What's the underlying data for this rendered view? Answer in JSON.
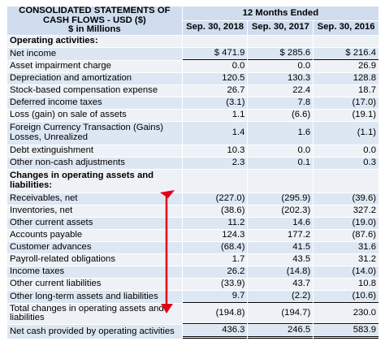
{
  "header": {
    "title_lines": [
      "CONSOLIDATED STATEMENTS OF",
      "CASH FLOWS - USD ($)",
      "$ in Millions"
    ],
    "period": "12 Months Ended",
    "columns": [
      "Sep. 30, 2018",
      "Sep. 30, 2017",
      "Sep. 30, 2016"
    ]
  },
  "rows": [
    {
      "label": "Operating activities:",
      "values": [
        "",
        "",
        ""
      ],
      "type": "section"
    },
    {
      "label": "Net income",
      "values": [
        "$ 471.9",
        "$ 285.6",
        "$ 216.4"
      ]
    },
    {
      "label": "Asset impairment charge",
      "values": [
        "0.0",
        "0.0",
        "26.9"
      ]
    },
    {
      "label": "Depreciation and amortization",
      "values": [
        "120.5",
        "130.3",
        "128.8"
      ]
    },
    {
      "label": "Stock-based compensation expense",
      "values": [
        "26.7",
        "22.4",
        "18.7"
      ]
    },
    {
      "label": "Deferred income taxes",
      "values": [
        "(3.1)",
        "7.8",
        "(17.0)"
      ]
    },
    {
      "label": "Loss (gain) on sale of assets",
      "values": [
        "1.1",
        "(6.6)",
        "(19.1)"
      ]
    },
    {
      "label": "Foreign Currency Transaction (Gains) Losses, Unrealized",
      "values": [
        "1.4",
        "1.6",
        "(1.1)"
      ]
    },
    {
      "label": "Debt extinguishment",
      "values": [
        "10.3",
        "0.0",
        "0.0"
      ]
    },
    {
      "label": "Other non-cash adjustments",
      "values": [
        "2.3",
        "0.1",
        "0.3"
      ]
    },
    {
      "label": "Changes in operating assets and liabilities:",
      "values": [
        "",
        "",
        ""
      ],
      "type": "section"
    },
    {
      "label": "Receivables, net",
      "values": [
        "(227.0)",
        "(295.9)",
        "(39.6)"
      ]
    },
    {
      "label": "Inventories, net",
      "values": [
        "(38.6)",
        "(202.3)",
        "327.2"
      ]
    },
    {
      "label": "Other current assets",
      "values": [
        "11.2",
        "14.6",
        "(19.0)"
      ]
    },
    {
      "label": "Accounts payable",
      "values": [
        "124.3",
        "177.2",
        "(87.6)"
      ]
    },
    {
      "label": "Customer advances",
      "values": [
        "(68.4)",
        "41.5",
        "31.6"
      ]
    },
    {
      "label": "Payroll-related obligations",
      "values": [
        "1.7",
        "43.5",
        "31.2"
      ]
    },
    {
      "label": "Income taxes",
      "values": [
        "26.2",
        "(14.8)",
        "(14.0)"
      ]
    },
    {
      "label": "Other current liabilities",
      "values": [
        "(33.9)",
        "43.7",
        "10.8"
      ]
    },
    {
      "label": "Other long-term assets and liabilities",
      "values": [
        "9.7",
        "(2.2)",
        "(10.6)"
      ]
    },
    {
      "label": "Total changes in operating assets and liabilities",
      "values": [
        "(194.8)",
        "(194.7)",
        "230.0"
      ]
    },
    {
      "label": "Net cash provided by operating activities",
      "values": [
        "436.3",
        "246.5",
        "583.9"
      ]
    }
  ],
  "annotation": {
    "arrow_color": "#e0001b"
  }
}
